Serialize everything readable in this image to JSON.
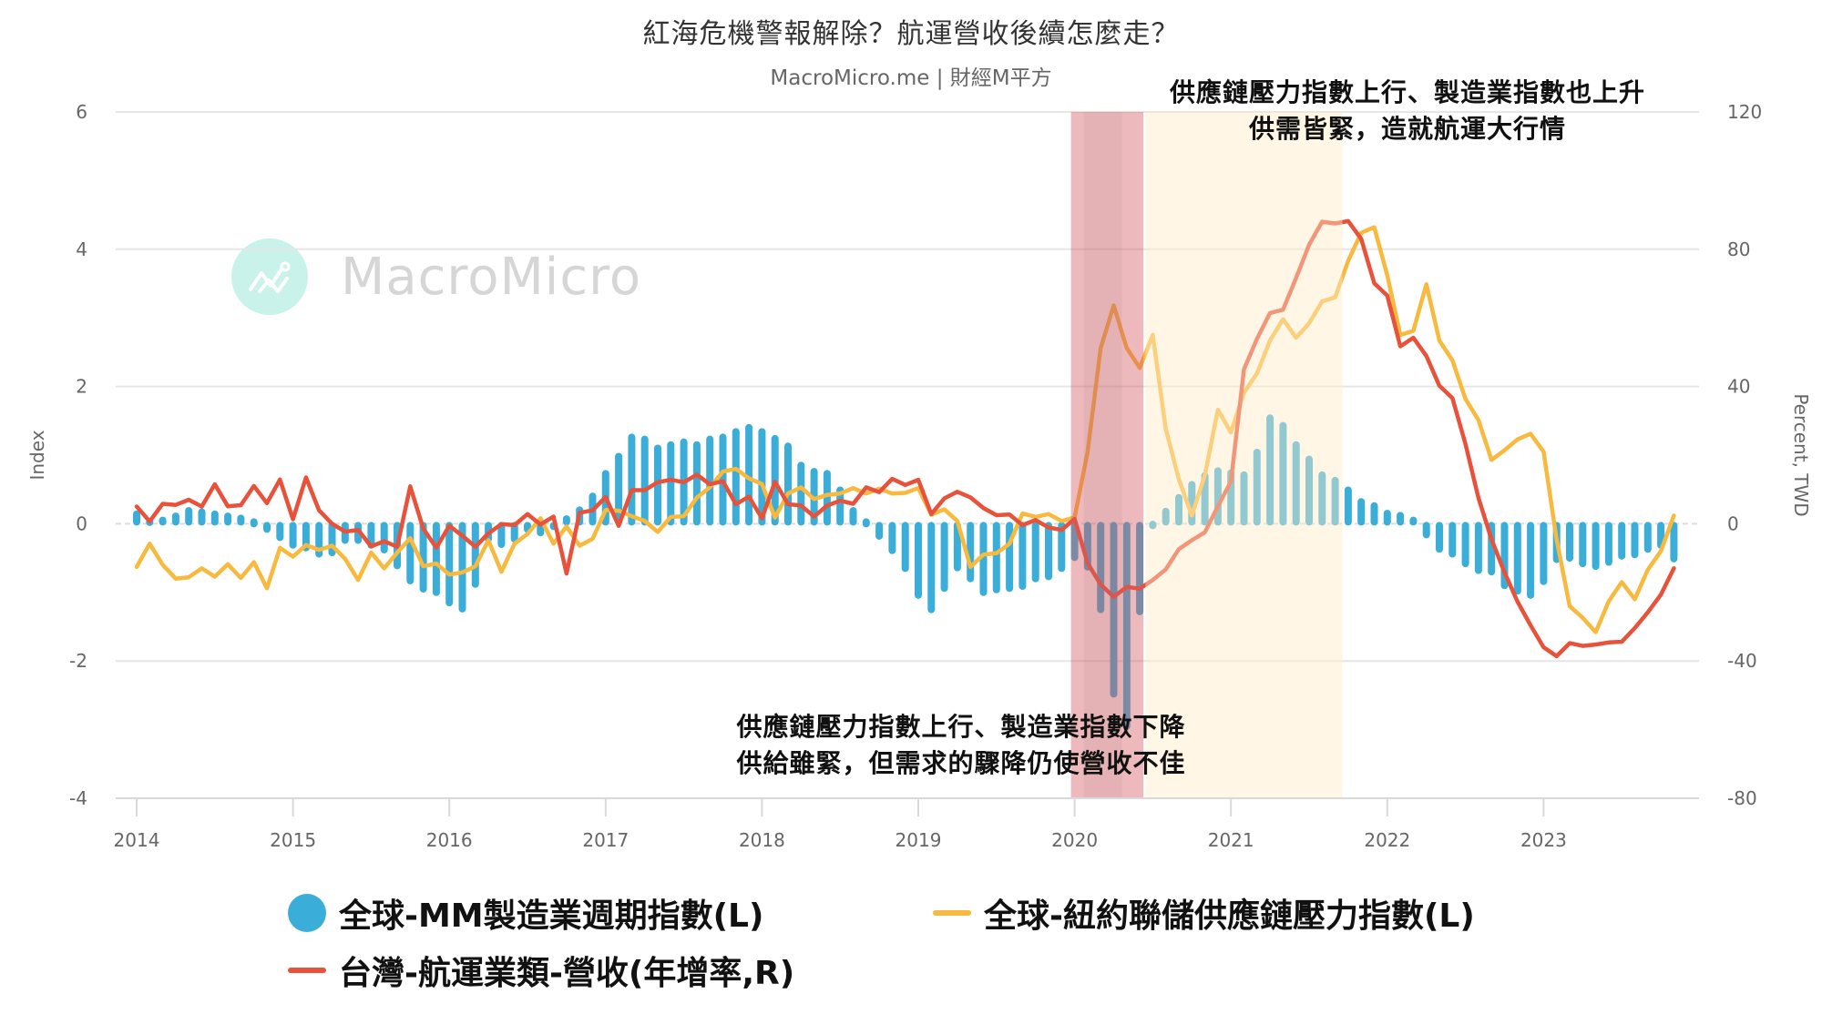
{
  "header": {
    "title": "紅海危機警報解除？航運營收後續怎麼走？",
    "subtitle": "MacroMicro.me | 財經M平方"
  },
  "watermark": {
    "text": "MacroMicro",
    "icon": "chart-line-icon"
  },
  "annotations": {
    "top_line1": "供應鏈壓力指數上行、製造業指數也上升",
    "top_line2": "供需皆緊，造就航運大行情",
    "bottom_line1": "供應鏈壓力指數上行、製造業指數下降",
    "bottom_line2": "供給雖緊，但需求的驟降仍使營收不佳"
  },
  "legend": [
    {
      "label": "全球-MM製造業週期指數(L)",
      "marker": "circle",
      "color": "#3aaed8"
    },
    {
      "label": "全球-紐約聯儲供應鏈壓力指數(L)",
      "marker": "line",
      "color": "#f7b93e"
    },
    {
      "label": "台灣-航運業類-營收(年增率,R)",
      "marker": "line",
      "color": "#e8513a"
    }
  ],
  "chart_data": {
    "type": "bar+line",
    "title": "紅海危機警報解除？航運營收後續怎麼走？",
    "subtitle": "MacroMicro.me | 財經M平方",
    "x_start": "2014-01",
    "x_end": "2023-11",
    "x_frequency": "monthly",
    "x_ticks": [
      "2014",
      "2015",
      "2016",
      "2017",
      "2018",
      "2019",
      "2020",
      "2021",
      "2022",
      "2023"
    ],
    "y_left": {
      "label": "Index",
      "ticks": [
        6,
        4,
        2,
        0,
        -2,
        -4
      ],
      "range": [
        -4,
        6
      ]
    },
    "y_right": {
      "label": "Percent, TWD",
      "ticks": [
        120,
        80,
        40,
        0,
        -40,
        -80
      ],
      "range": [
        -80,
        120
      ]
    },
    "grid": true,
    "legend_position": "bottom",
    "highlights": [
      {
        "from": "2020-01",
        "to": "2020-06",
        "color": "#e8a0a4",
        "note": "供應鏈壓力指數上行、製造業指數下降 / 供給雖緊，但需求的驟降仍使營收不佳"
      },
      {
        "from": "2020-07",
        "to": "2021-09",
        "color": "#fff3dc",
        "note": "供應鏈壓力指數上行、製造業指數也上升 / 供需皆緊，造就航運大行情"
      }
    ],
    "series": [
      {
        "name": "全球-MM製造業週期指數(L)",
        "type": "bar",
        "axis": "left",
        "color": "#3aaed8",
        "values": [
          0.14,
          0.02,
          0.05,
          0.11,
          0.19,
          0.17,
          0.14,
          0.11,
          0.08,
          0,
          -0.08,
          -0.2,
          -0.31,
          -0.35,
          -0.44,
          -0.42,
          -0.24,
          -0.24,
          -0.31,
          -0.38,
          -0.61,
          -0.83,
          -0.95,
          -1.0,
          -1.15,
          -1.24,
          -0.88,
          -0.22,
          -0.3,
          -0.22,
          -0.08,
          -0.13,
          -0.04,
          0.07,
          0.2,
          0.4,
          0.73,
          0.98,
          1.26,
          1.23,
          1.1,
          1.15,
          1.19,
          1.15,
          1.23,
          1.26,
          1.34,
          1.4,
          1.34,
          1.24,
          1.13,
          0.85,
          0.76,
          0.73,
          0.49,
          0.19,
          0,
          -0.18,
          -0.39,
          -0.65,
          -1.04,
          -1.25,
          -0.94,
          -0.64,
          -0.8,
          -1.0,
          -0.96,
          -0.94,
          -0.91,
          -0.8,
          -0.77,
          -0.65,
          -0.49,
          -0.63,
          -1.25,
          -2.48,
          -2.95,
          -1.28,
          -0.01,
          0.18,
          0.38,
          0.57,
          0.7,
          0.77,
          0.74,
          0.71,
          1.04,
          1.54,
          1.43,
          1.15,
          0.94,
          0.71,
          0.63,
          0.49,
          0.32,
          0.26,
          0.15,
          0.12,
          0.05,
          -0.16,
          -0.37,
          -0.44,
          -0.58,
          -0.68,
          -0.7,
          -0.9,
          -0.98,
          -1.04,
          -0.84,
          -0.52,
          -0.5,
          -0.58,
          -0.62,
          -0.56,
          -0.47,
          -0.45,
          -0.37,
          -0.31,
          -0.51
        ]
      },
      {
        "name": "全球-紐約聯儲供應鏈壓力指數(L)",
        "type": "line",
        "axis": "left",
        "color": "#f7b93e",
        "values": [
          -0.63,
          -0.29,
          -0.6,
          -0.8,
          -0.78,
          -0.65,
          -0.77,
          -0.59,
          -0.79,
          -0.56,
          -0.94,
          -0.35,
          -0.48,
          -0.31,
          -0.38,
          -0.32,
          -0.51,
          -0.82,
          -0.42,
          -0.65,
          -0.42,
          -0.21,
          -0.62,
          -0.58,
          -0.74,
          -0.71,
          -0.62,
          -0.24,
          -0.7,
          -0.29,
          -0.15,
          0.08,
          -0.29,
          -0.04,
          -0.32,
          -0.22,
          0.2,
          0.19,
          0.11,
          0.04,
          -0.12,
          0.1,
          0.11,
          0.38,
          0.53,
          0.76,
          0.8,
          0.66,
          0.58,
          0.09,
          0.44,
          0.53,
          0.36,
          0.42,
          0.44,
          0.52,
          0.44,
          0.51,
          0.44,
          0.45,
          0.52,
          0.13,
          0.21,
          0.04,
          -0.63,
          -0.45,
          -0.43,
          -0.29,
          0.15,
          0.1,
          0.14,
          0.04,
          0.09,
          1.05,
          2.56,
          3.18,
          2.56,
          2.27,
          2.75,
          1.38,
          0.65,
          0.12,
          0.71,
          1.66,
          1.33,
          1.91,
          2.19,
          2.67,
          2.98,
          2.71,
          2.92,
          3.24,
          3.3,
          3.83,
          4.24,
          4.32,
          3.62,
          2.75,
          2.81,
          3.49,
          2.67,
          2.38,
          1.82,
          1.51,
          0.93,
          1.07,
          1.23,
          1.31,
          1.05,
          -0.23,
          -1.2,
          -1.37,
          -1.58,
          -1.13,
          -0.85,
          -1.1,
          -0.67,
          -0.4,
          0.12
        ]
      },
      {
        "name": "台灣-航運業類-營收(年增率,R)",
        "type": "line",
        "axis": "right",
        "color": "#e8513a",
        "values": [
          5,
          0.7,
          5.8,
          5.5,
          7,
          5,
          11.5,
          5.1,
          5.4,
          11,
          6,
          12.9,
          1.3,
          13.5,
          3.9,
          0,
          -2.3,
          -1.8,
          -6.6,
          -5.1,
          -6.7,
          10.9,
          -1.4,
          -7,
          -0.6,
          -3.5,
          -6.7,
          -2.8,
          -0.1,
          -0.4,
          2.8,
          -0.2,
          2.1,
          -14.5,
          3.2,
          3.9,
          7.8,
          -0.6,
          9.8,
          9.8,
          12.1,
          12.8,
          12.1,
          14.3,
          11.5,
          12.4,
          5.7,
          7.9,
          1.6,
          12.2,
          5.7,
          5.3,
          2.1,
          5.3,
          6.7,
          5.8,
          10.6,
          9.2,
          13.1,
          11.3,
          12.8,
          2.8,
          7.4,
          9.3,
          7.7,
          4.6,
          2.5,
          2.7,
          -0.4,
          1.1,
          -1.1,
          -1.8,
          1.4,
          -11.5,
          -17.7,
          -21.3,
          -18.4,
          -18.9,
          -16.4,
          -13.3,
          -7.4,
          -4.8,
          -2.5,
          5.1,
          12.3,
          45,
          53.9,
          61.4,
          62.4,
          71.6,
          81.3,
          88,
          87.5,
          88.2,
          83,
          70.1,
          66.5,
          51.7,
          54.2,
          48.9,
          40.2,
          36.6,
          23.3,
          7.5,
          -4.5,
          -14.2,
          -22.7,
          -29.6,
          -36,
          -38.6,
          -34.8,
          -35.6,
          -35.2,
          -34.6,
          -34.4,
          -30.4,
          -25.8,
          -20.7,
          -13
        ]
      }
    ]
  }
}
